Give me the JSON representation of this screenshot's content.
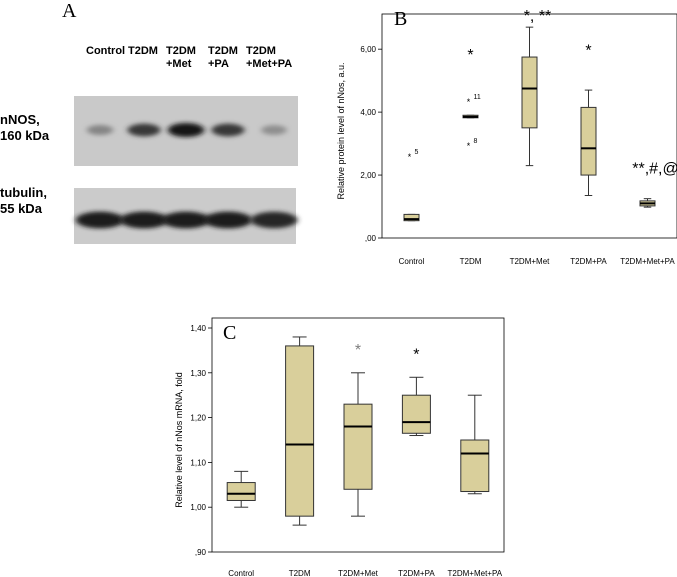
{
  "panel_a": {
    "letter": "A",
    "lanes": [
      "Control",
      "T2DM",
      "T2DM\n+Met",
      "T2DM\n+PA",
      "T2DM\n+Met+PA"
    ],
    "bands": [
      {
        "label_line1": "nNOS,",
        "label_line2": "160 kDa",
        "intensity": [
          0.35,
          0.75,
          0.95,
          0.75,
          0.3
        ]
      },
      {
        "label_line1": "tubulin,",
        "label_line2": "55 kDa",
        "intensity": [
          0.9,
          0.9,
          0.9,
          0.9,
          0.85
        ]
      }
    ]
  },
  "chart_data": [
    {
      "panel": "B",
      "type": "boxplot",
      "ylabel": "Relative protein level of nNos, a.u.",
      "xlabel": "",
      "ylim": [
        0,
        6.8
      ],
      "yticks": [
        ",00",
        "2,00",
        "4,00",
        "6,00"
      ],
      "ytick_values": [
        0,
        2,
        4,
        6
      ],
      "categories": [
        "Control",
        "T2DM",
        "T2DM+Met",
        "T2DM+PA",
        "T2DM+Met+PA"
      ],
      "boxes": [
        {
          "whisker_low": 0.55,
          "q1": 0.55,
          "median": 0.6,
          "q3": 0.75,
          "whisker_high": 0.75
        },
        {
          "whisker_low": 3.82,
          "q1": 3.82,
          "median": 3.85,
          "q3": 3.9,
          "whisker_high": 3.9
        },
        {
          "whisker_low": 2.3,
          "q1": 3.5,
          "median": 4.75,
          "q3": 5.75,
          "whisker_high": 6.7
        },
        {
          "whisker_low": 1.35,
          "q1": 2.0,
          "median": 2.85,
          "q3": 4.15,
          "whisker_high": 4.7
        },
        {
          "whisker_low": 0.98,
          "q1": 1.02,
          "median": 1.1,
          "q3": 1.18,
          "whisker_high": 1.25
        }
      ],
      "outliers": [
        {
          "category": "Control",
          "value": 2.6,
          "label": "5"
        },
        {
          "category": "T2DM",
          "value": 4.35,
          "label": "11"
        },
        {
          "category": "T2DM",
          "value": 2.95,
          "label": "8"
        }
      ],
      "annotations": [
        {
          "category": "T2DM",
          "text": "*",
          "value": 5.65
        },
        {
          "category": "T2DM+Met",
          "text": "*, **",
          "value": 6.9
        },
        {
          "category": "T2DM+PA",
          "text": "*",
          "value": 5.8
        },
        {
          "category": "T2DM+Met+PA",
          "text": "**,#,@",
          "value": 2.05
        }
      ]
    },
    {
      "panel": "C",
      "type": "boxplot",
      "ylabel": "Relative level of nNos  mRNA, fold",
      "xlabel": "",
      "ylim": [
        0.9,
        1.4
      ],
      "yticks": [
        ",90",
        "1,00",
        "1,10",
        "1,20",
        "1,30",
        "1,40"
      ],
      "ytick_values": [
        0.9,
        1.0,
        1.1,
        1.2,
        1.3,
        1.4
      ],
      "categories": [
        "Control",
        "T2DM",
        "T2DM+Met",
        "T2DM+PA",
        "T2DM+Met+PA"
      ],
      "boxes": [
        {
          "whisker_low": 1.0,
          "q1": 1.015,
          "median": 1.03,
          "q3": 1.055,
          "whisker_high": 1.08
        },
        {
          "whisker_low": 0.96,
          "q1": 0.98,
          "median": 1.14,
          "q3": 1.36,
          "whisker_high": 1.38
        },
        {
          "whisker_low": 0.98,
          "q1": 1.04,
          "median": 1.18,
          "q3": 1.23,
          "whisker_high": 1.3
        },
        {
          "whisker_low": 1.16,
          "q1": 1.165,
          "median": 1.19,
          "q3": 1.25,
          "whisker_high": 1.29
        },
        {
          "whisker_low": 1.03,
          "q1": 1.035,
          "median": 1.12,
          "q3": 1.15,
          "whisker_high": 1.25
        }
      ],
      "outliers": [],
      "annotations": [
        {
          "category": "T2DM+Met",
          "text": "*",
          "value": 1.34,
          "color": "#7f7f7f"
        },
        {
          "category": "T2DM+PA",
          "text": "*",
          "value": 1.33,
          "color": "#000000"
        }
      ]
    }
  ],
  "colors": {
    "box_fill": "#d9cf9b",
    "box_stroke": "#333333",
    "grey_star": "#7f7f7f"
  },
  "panel_b_letter": "B",
  "panel_c_letter": "C"
}
